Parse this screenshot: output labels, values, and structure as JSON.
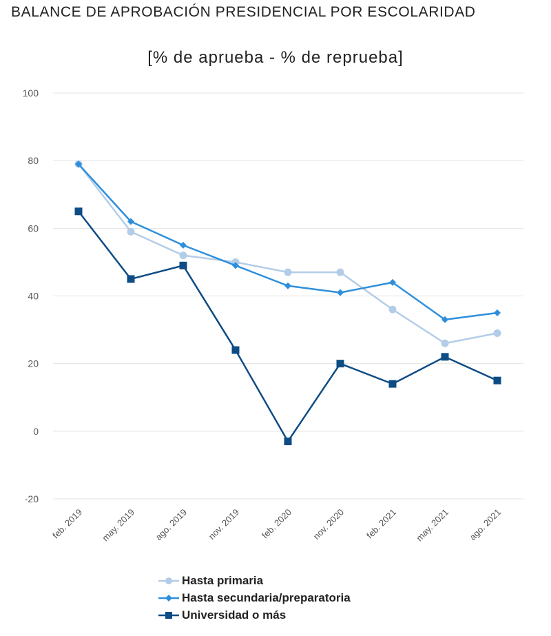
{
  "chart_data": {
    "type": "line",
    "title": "BALANCE DE APROBACIÓN PRESIDENCIAL POR ESCOLARIDAD",
    "subtitle": "[% de aprueba - % de reprueba]",
    "categories": [
      "feb. 2019",
      "may. 2019",
      "ago. 2019",
      "nov. 2019",
      "feb. 2020",
      "nov. 2020",
      "feb. 2021",
      "may. 2021",
      "ago. 2021"
    ],
    "ylim": [
      -20,
      100
    ],
    "yticks": [
      -20,
      0,
      20,
      40,
      60,
      80,
      100
    ],
    "grid": true,
    "legend_position": "bottom",
    "series": [
      {
        "name": "Hasta primaria",
        "color": "#b3cde8",
        "marker": "circle",
        "values": [
          79,
          59,
          52,
          50,
          47,
          47,
          36,
          26,
          29
        ]
      },
      {
        "name": "Hasta secundaria/preparatoria",
        "color": "#2e8fdc",
        "marker": "diamond",
        "values": [
          79,
          62,
          55,
          49,
          43,
          41,
          44,
          33,
          35
        ]
      },
      {
        "name": "Universidad o más",
        "color": "#0e4c85",
        "marker": "square",
        "values": [
          65,
          45,
          49,
          24,
          -3,
          20,
          14,
          22,
          15
        ]
      }
    ]
  }
}
